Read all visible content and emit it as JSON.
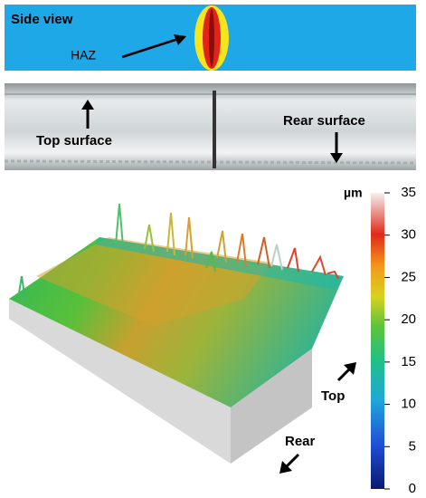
{
  "side_view": {
    "title": "Side view",
    "label": "HAZ"
  },
  "photo": {
    "top_label": "Top surface",
    "rear_label": "Rear surface"
  },
  "surface_map": {
    "top_label": "Top",
    "rear_label": "Rear"
  },
  "colorbar": {
    "unit": "µm",
    "ticks": [
      0,
      5,
      10,
      15,
      20,
      25,
      30,
      35
    ],
    "range": [
      0,
      35
    ]
  }
}
